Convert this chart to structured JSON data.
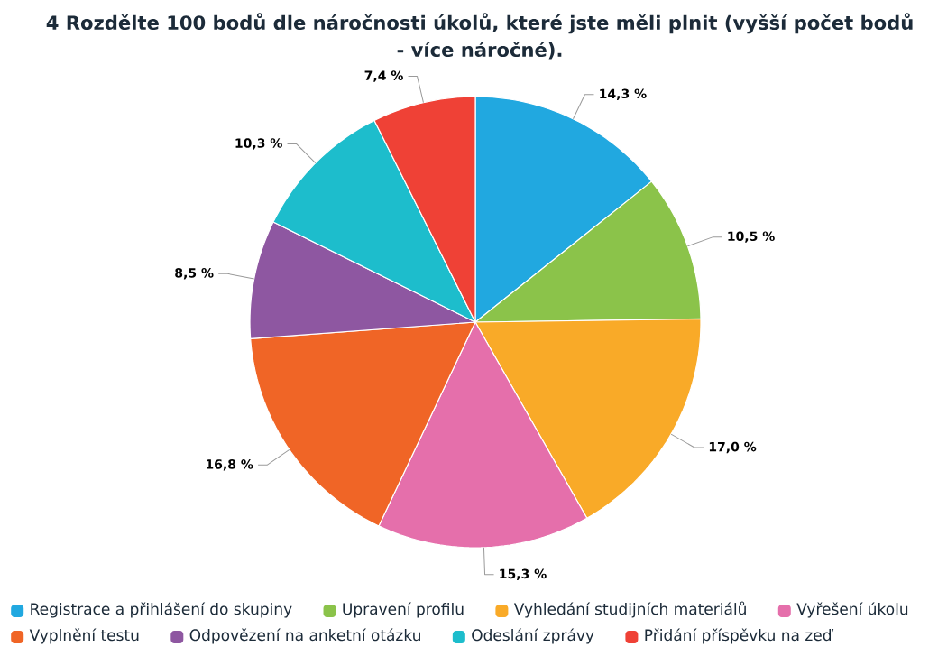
{
  "chart_data": {
    "type": "pie",
    "title": "4 Rozdělte 100 bodů dle náročnosti úkolů, které jste měli plnit (vyšší počet bodů - více náročné).",
    "categories": [
      "Registrace a přihlášení do skupiny",
      "Upravení profilu",
      "Vyhledání studijních materiálů",
      "Vyřešení úkolu",
      "Vyplnění testu",
      "Odpovězení na anketní otázku",
      "Odeslání zprávy",
      "Přidání příspěvku na zeď"
    ],
    "values": [
      14.3,
      10.5,
      17.0,
      15.3,
      16.8,
      8.5,
      10.3,
      7.4
    ],
    "value_labels": [
      "14,3 %",
      "10,5 %",
      "17,0 %",
      "15,3 %",
      "16,8 %",
      "8,5 %",
      "10,3 %",
      "7,4 %"
    ],
    "colors": [
      "#21a8e0",
      "#8bc34a",
      "#f9aa28",
      "#e56fab",
      "#f06526",
      "#8e57a1",
      "#1dbdcc",
      "#ef4136"
    ],
    "legend": "bottom"
  }
}
